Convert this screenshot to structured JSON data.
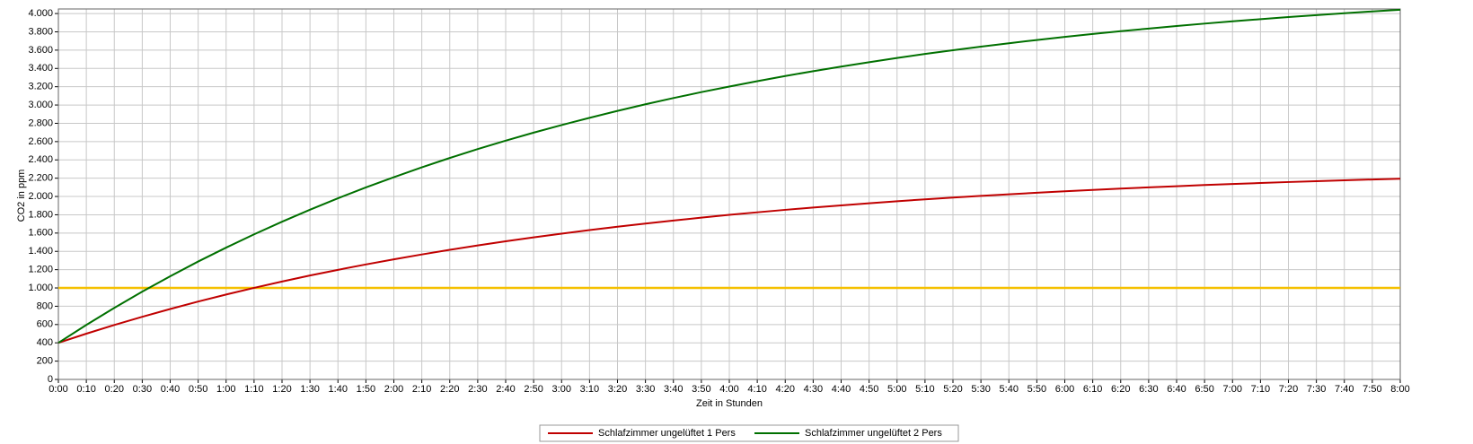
{
  "chart_data": {
    "type": "line",
    "x_label": "Zeit in Stunden",
    "y_label": "CO2 in ppm",
    "categories": [
      "0:00",
      "0:10",
      "0:20",
      "0:30",
      "0:40",
      "0:50",
      "1:00",
      "1:10",
      "1:20",
      "1:30",
      "1:40",
      "1:50",
      "2:00",
      "2:10",
      "2:20",
      "2:30",
      "2:40",
      "2:50",
      "3:00",
      "3:10",
      "3:20",
      "3:30",
      "3:40",
      "3:50",
      "4:00",
      "4:10",
      "4:20",
      "4:30",
      "4:40",
      "4:50",
      "5:00",
      "5:10",
      "5:20",
      "5:30",
      "5:40",
      "5:50",
      "6:00",
      "6:10",
      "6:20",
      "6:30",
      "6:40",
      "6:50",
      "7:00",
      "7:10",
      "7:20",
      "7:30",
      "7:40",
      "7:50",
      "8:00"
    ],
    "series": [
      {
        "name": "Schlafzimmer ungelüftet 1 Pers",
        "color": "#c00000",
        "values": [
          400,
          500,
          595,
          685,
          770,
          851,
          928,
          1001,
          1070,
          1136,
          1198,
          1257,
          1313,
          1366,
          1417,
          1465,
          1510,
          1553,
          1594,
          1633,
          1669,
          1704,
          1737,
          1769,
          1799,
          1827,
          1854,
          1879,
          1903,
          1926,
          1948,
          1969,
          1988,
          2007,
          2024,
          2041,
          2057,
          2072,
          2086,
          2100,
          2112,
          2125,
          2136,
          2147,
          2158,
          2167,
          2177,
          2186,
          2194
        ]
      },
      {
        "name": "Schlafzimmer ungelüftet 2 Pers",
        "color": "#007000",
        "values": [
          400,
          596,
          782,
          960,
          1128,
          1289,
          1441,
          1586,
          1724,
          1855,
          1980,
          2099,
          2211,
          2319,
          2421,
          2518,
          2610,
          2698,
          2781,
          2860,
          2936,
          3008,
          3076,
          3141,
          3202,
          3261,
          3317,
          3370,
          3420,
          3468,
          3514,
          3558,
          3599,
          3638,
          3675,
          3711,
          3745,
          3777,
          3807,
          3836,
          3864,
          3890,
          3915,
          3939,
          3962,
          3983,
          4004,
          4023,
          4041
        ]
      }
    ],
    "reference_line": {
      "value": 1000,
      "color": "#f5c000"
    },
    "ylim": [
      0,
      4050
    ],
    "yticks": [
      0,
      200,
      400,
      600,
      800,
      {
        "value": 1000,
        "label": "1.000"
      },
      {
        "value": 1200,
        "label": "1.200"
      },
      {
        "value": 1400,
        "label": "1.400"
      },
      {
        "value": 1600,
        "label": "1.600"
      },
      {
        "value": 1800,
        "label": "1.800"
      },
      {
        "value": 2000,
        "label": "2.000"
      },
      {
        "value": 2200,
        "label": "2.200"
      },
      {
        "value": 2400,
        "label": "2.400"
      },
      {
        "value": 2600,
        "label": "2.600"
      },
      {
        "value": 2800,
        "label": "2.800"
      },
      {
        "value": 3000,
        "label": "3.000"
      },
      {
        "value": 3200,
        "label": "3.200"
      },
      {
        "value": 3400,
        "label": "3.400"
      },
      {
        "value": 3600,
        "label": "3.600"
      },
      {
        "value": 3800,
        "label": "3.800"
      },
      {
        "value": 4000,
        "label": "4.000"
      }
    ],
    "grid": true
  }
}
